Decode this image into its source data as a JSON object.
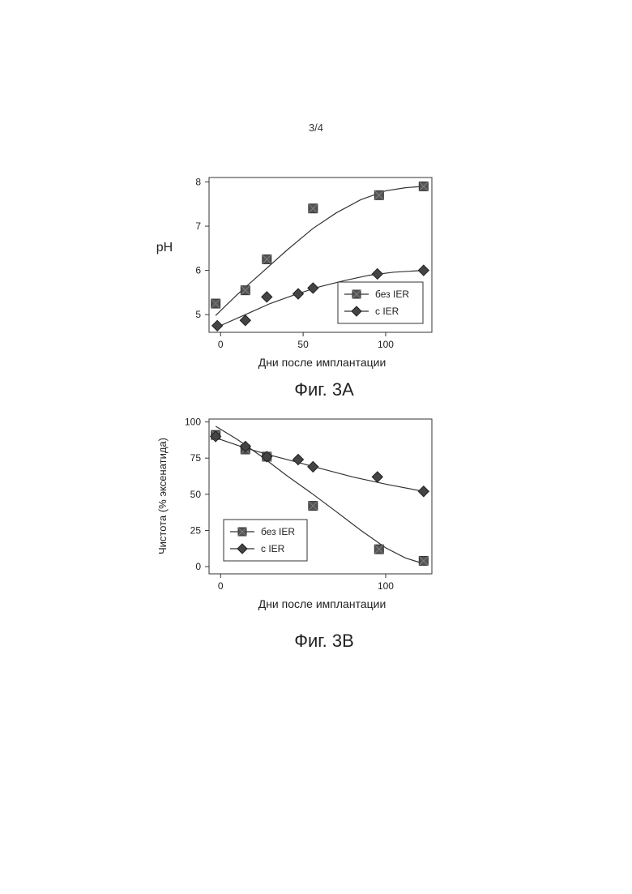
{
  "page_number": "3/4",
  "figures": [
    {
      "caption": "Фиг. 3A"
    },
    {
      "caption": "Фиг. 3B"
    }
  ],
  "chart_data": [
    {
      "type": "scatter",
      "title": "",
      "xlabel": "Дни после имплантации",
      "ylabel": "pH",
      "xlim": [
        -7,
        128
      ],
      "ylim": [
        4.6,
        8.1
      ],
      "xticks": [
        0,
        50,
        100
      ],
      "yticks": [
        5,
        6,
        7,
        8
      ],
      "legend_position": "bottom-right",
      "grid": false,
      "series": [
        {
          "name": "без IER",
          "marker": "square",
          "color": "#4a4a4a",
          "points": [
            [
              -3,
              5.25
            ],
            [
              15,
              5.55
            ],
            [
              28,
              6.25
            ],
            [
              56,
              7.4
            ],
            [
              96,
              7.7
            ],
            [
              123,
              7.9
            ]
          ],
          "fit": [
            [
              -3,
              4.98
            ],
            [
              10,
              5.45
            ],
            [
              25,
              5.95
            ],
            [
              40,
              6.45
            ],
            [
              56,
              6.95
            ],
            [
              70,
              7.3
            ],
            [
              85,
              7.6
            ],
            [
              100,
              7.8
            ],
            [
              112,
              7.87
            ],
            [
              123,
              7.9
            ]
          ]
        },
        {
          "name": "с IER",
          "marker": "diamond",
          "color": "#4a4a4a",
          "points": [
            [
              -2,
              4.75
            ],
            [
              15,
              4.87
            ],
            [
              28,
              5.4
            ],
            [
              47,
              5.47
            ],
            [
              56,
              5.6
            ],
            [
              95,
              5.92
            ],
            [
              123,
              6.0
            ]
          ],
          "fit": [
            [
              -2,
              4.72
            ],
            [
              15,
              5.0
            ],
            [
              30,
              5.25
            ],
            [
              45,
              5.45
            ],
            [
              60,
              5.63
            ],
            [
              75,
              5.77
            ],
            [
              90,
              5.89
            ],
            [
              105,
              5.96
            ],
            [
              123,
              6.0
            ]
          ]
        }
      ]
    },
    {
      "type": "scatter",
      "title": "",
      "xlabel": "Дни после имплантации",
      "ylabel": "Чистота (% эксенатида)",
      "xlim": [
        -7,
        128
      ],
      "ylim": [
        -5,
        102
      ],
      "xticks": [
        0,
        100
      ],
      "yticks": [
        0,
        25,
        50,
        75,
        100
      ],
      "legend_position": "bottom-left",
      "grid": false,
      "series": [
        {
          "name": "без IER",
          "marker": "square",
          "color": "#4a4a4a",
          "points": [
            [
              -3,
              91
            ],
            [
              15,
              81
            ],
            [
              28,
              76
            ],
            [
              56,
              42
            ],
            [
              96,
              12
            ],
            [
              123,
              4
            ]
          ],
          "fit": [
            [
              -3,
              97
            ],
            [
              10,
              88
            ],
            [
              25,
              76
            ],
            [
              40,
              63
            ],
            [
              56,
              50
            ],
            [
              70,
              38
            ],
            [
              85,
              25
            ],
            [
              100,
              13
            ],
            [
              112,
              6
            ],
            [
              123,
              2
            ]
          ]
        },
        {
          "name": "с IER",
          "marker": "diamond",
          "color": "#4a4a4a",
          "points": [
            [
              -3,
              90
            ],
            [
              15,
              83
            ],
            [
              28,
              76
            ],
            [
              47,
              74
            ],
            [
              56,
              69
            ],
            [
              95,
              62
            ],
            [
              123,
              52
            ]
          ],
          "fit": [
            [
              -3,
              89
            ],
            [
              15,
              82
            ],
            [
              30,
              77
            ],
            [
              47,
              72
            ],
            [
              60,
              68
            ],
            [
              80,
              62
            ],
            [
              100,
              57
            ],
            [
              123,
              52
            ]
          ]
        }
      ]
    }
  ]
}
